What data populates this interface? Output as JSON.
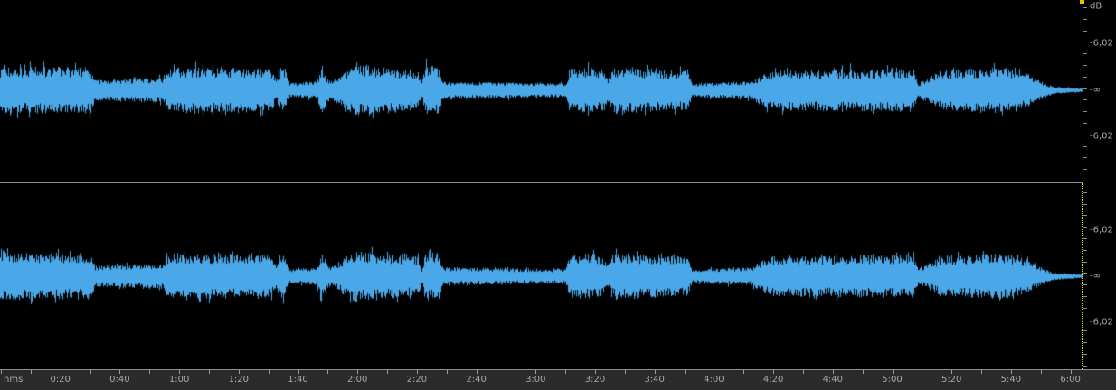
{
  "waveform": {
    "color": "#4aa8e8",
    "background": "#000000",
    "channels": 2
  },
  "level_ruler": {
    "unit": "dB",
    "top_channel": [
      "-6,02",
      "-∞",
      "-6,02"
    ],
    "bottom_channel": [
      "-6,02",
      "-∞",
      "-6,02"
    ]
  },
  "time_ruler": {
    "unit": "hms",
    "labels": [
      "0:20",
      "0:40",
      "1:00",
      "1:20",
      "1:40",
      "2:00",
      "2:20",
      "2:40",
      "3:00",
      "3:20",
      "3:40",
      "4:00",
      "4:20",
      "4:40",
      "5:00",
      "5:20",
      "5:40",
      "6:00"
    ]
  },
  "cursor_color": "#e8e000"
}
